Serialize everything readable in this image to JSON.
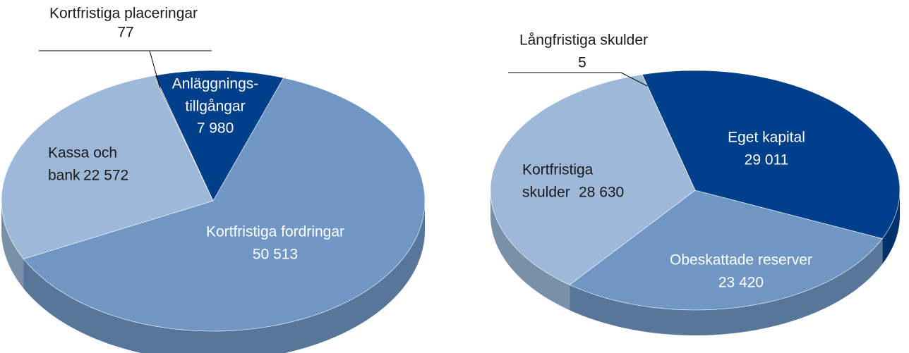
{
  "chart_data": [
    {
      "type": "pie",
      "categories": [
        [
          "Anläggnings-",
          "tillgångar"
        ],
        [
          "Kortfristiga fordringar"
        ],
        [
          "Kassa och",
          "bank"
        ],
        [
          "Kortfristiga placeringar"
        ]
      ],
      "values": [
        7980,
        50513,
        22572,
        77
      ],
      "value_labels": [
        "7 980",
        "50 513",
        "22 572",
        "77"
      ],
      "colors": [
        "#003f8a",
        "#7097c4",
        "#9db8d8",
        "#7f7f7f"
      ]
    },
    {
      "type": "pie",
      "categories": [
        [
          "Eget kapital"
        ],
        [
          "Obeskattade reserver"
        ],
        [
          "Kortfristiga",
          "skulder"
        ],
        [
          "Långfristiga skulder"
        ]
      ],
      "values": [
        29011,
        23420,
        28630,
        5
      ],
      "value_labels": [
        "29 011",
        "23 420",
        "28 630",
        "5"
      ],
      "colors": [
        "#003f8a",
        "#7097c4",
        "#9db8d8",
        "#7f7f7f"
      ]
    }
  ]
}
